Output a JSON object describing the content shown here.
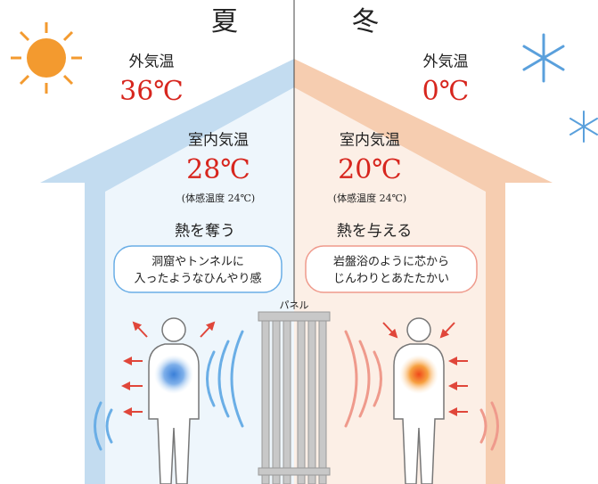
{
  "summer": {
    "season": "夏",
    "outdoor_label": "外気温",
    "outdoor_temp": "36℃",
    "indoor_label": "室内気温",
    "indoor_temp": "28℃",
    "felt_temp": "(体感温度 24℃)",
    "heat_action": "熱を奪う",
    "description": [
      "洞窟やトンネルに",
      "入ったようなひんやり感"
    ]
  },
  "winter": {
    "season": "冬",
    "outdoor_label": "外気温",
    "outdoor_temp": "0℃",
    "indoor_label": "室内気温",
    "indoor_temp": "20℃",
    "felt_temp": "(体感温度 24℃)",
    "heat_action": "熱を与える",
    "description": [
      "岩盤浴のように芯から",
      "じんわりとあたたかい"
    ]
  },
  "panel_label": "パネル"
}
